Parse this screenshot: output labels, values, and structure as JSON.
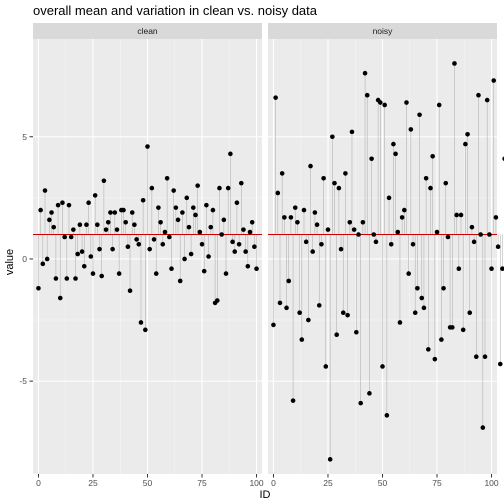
{
  "chart_data": {
    "type": "scatter",
    "title": "overall mean and variation in clean vs. noisy data",
    "xlabel": "ID",
    "ylabel": "value",
    "xlim": [
      -2.5,
      102.5
    ],
    "ylim": [
      -8.8,
      9.0
    ],
    "x_ticks": [
      0,
      25,
      50,
      75,
      100
    ],
    "y_ticks": [
      -5,
      0,
      5
    ],
    "y_tick_labels": [
      "-5",
      "0",
      "5"
    ],
    "mean_line": {
      "value": 1.0,
      "color": "#cc0000"
    },
    "colors": {
      "panel_bg": "#ebebeb",
      "grid_major": "#ffffff",
      "strip_bg": "#d9d9d9",
      "segment": "#b3b3b3",
      "point": "#000000"
    },
    "panels": [
      {
        "name": "clean",
        "values": [
          -1.2,
          2.0,
          -0.2,
          2.8,
          0.0,
          1.6,
          1.9,
          1.3,
          -0.8,
          2.2,
          -1.6,
          2.3,
          0.9,
          -0.8,
          2.2,
          0.9,
          1.2,
          -0.8,
          0.2,
          1.4,
          0.3,
          -0.3,
          1.4,
          2.3,
          0.1,
          -0.6,
          2.6,
          1.4,
          0.4,
          -0.7,
          3.2,
          1.2,
          1.5,
          1.9,
          0.4,
          1.9,
          1.2,
          -0.6,
          2.0,
          2.0,
          1.5,
          0.5,
          -1.3,
          1.9,
          1.4,
          0.8,
          0.6,
          -2.6,
          2.4,
          -2.9,
          4.6,
          0.4,
          2.9,
          0.8,
          -0.6,
          2.1,
          1.5,
          0.6,
          1.1,
          3.3,
          0.9,
          -0.4,
          2.8,
          2.1,
          1.6,
          -0.9,
          1.9,
          0.0,
          2.5,
          1.3,
          0.2,
          2.1,
          1.8,
          3.0,
          1.1,
          0.6,
          -0.5,
          2.2,
          0.1,
          1.3,
          2.0,
          -1.8,
          -1.7,
          2.9,
          1.0,
          1.6,
          -0.6,
          2.9,
          4.3,
          0.7,
          0.3,
          2.3,
          0.6,
          3.1,
          1.2,
          0.3,
          -0.3,
          1.1,
          1.5,
          0.5,
          -0.4
        ]
      },
      {
        "name": "noisy",
        "values": [
          -2.7,
          6.6,
          2.7,
          -1.8,
          3.5,
          1.7,
          -2.0,
          -0.9,
          1.7,
          -5.8,
          2.1,
          1.5,
          -2.2,
          -3.3,
          2.0,
          0.7,
          -2.5,
          3.8,
          0.3,
          1.9,
          1.4,
          -1.9,
          0.6,
          3.3,
          -4.4,
          1.2,
          -8.2,
          5.0,
          3.1,
          -3.1,
          2.9,
          0.4,
          -2.2,
          3.5,
          -2.3,
          1.5,
          5.2,
          1.2,
          -3.0,
          1.0,
          -5.9,
          1.5,
          7.6,
          6.7,
          -5.5,
          4.1,
          1.0,
          0.7,
          6.5,
          6.4,
          -4.4,
          6.3,
          -6.4,
          2.5,
          0.6,
          4.7,
          4.3,
          1.1,
          -2.6,
          1.7,
          2.0,
          6.4,
          -0.6,
          5.3,
          0.6,
          -2.2,
          -1.2,
          5.9,
          -1.6,
          -2.0,
          3.3,
          -3.7,
          2.9,
          4.2,
          -4.1,
          1.1,
          6.3,
          -3.3,
          -1.2,
          3.1,
          0.9,
          -2.8,
          -2.8,
          8.0,
          1.8,
          -0.4,
          1.8,
          -2.9,
          4.7,
          5.1,
          -2.2,
          1.3,
          0.7,
          -4.0,
          6.7,
          1.0,
          -6.9,
          -4.0,
          6.5,
          1.0,
          -0.4,
          7.3,
          1.7,
          0.5,
          -4.3,
          -0.4,
          4.1,
          1.7,
          3.8,
          -2.4,
          2.4,
          1.7
        ]
      }
    ]
  }
}
